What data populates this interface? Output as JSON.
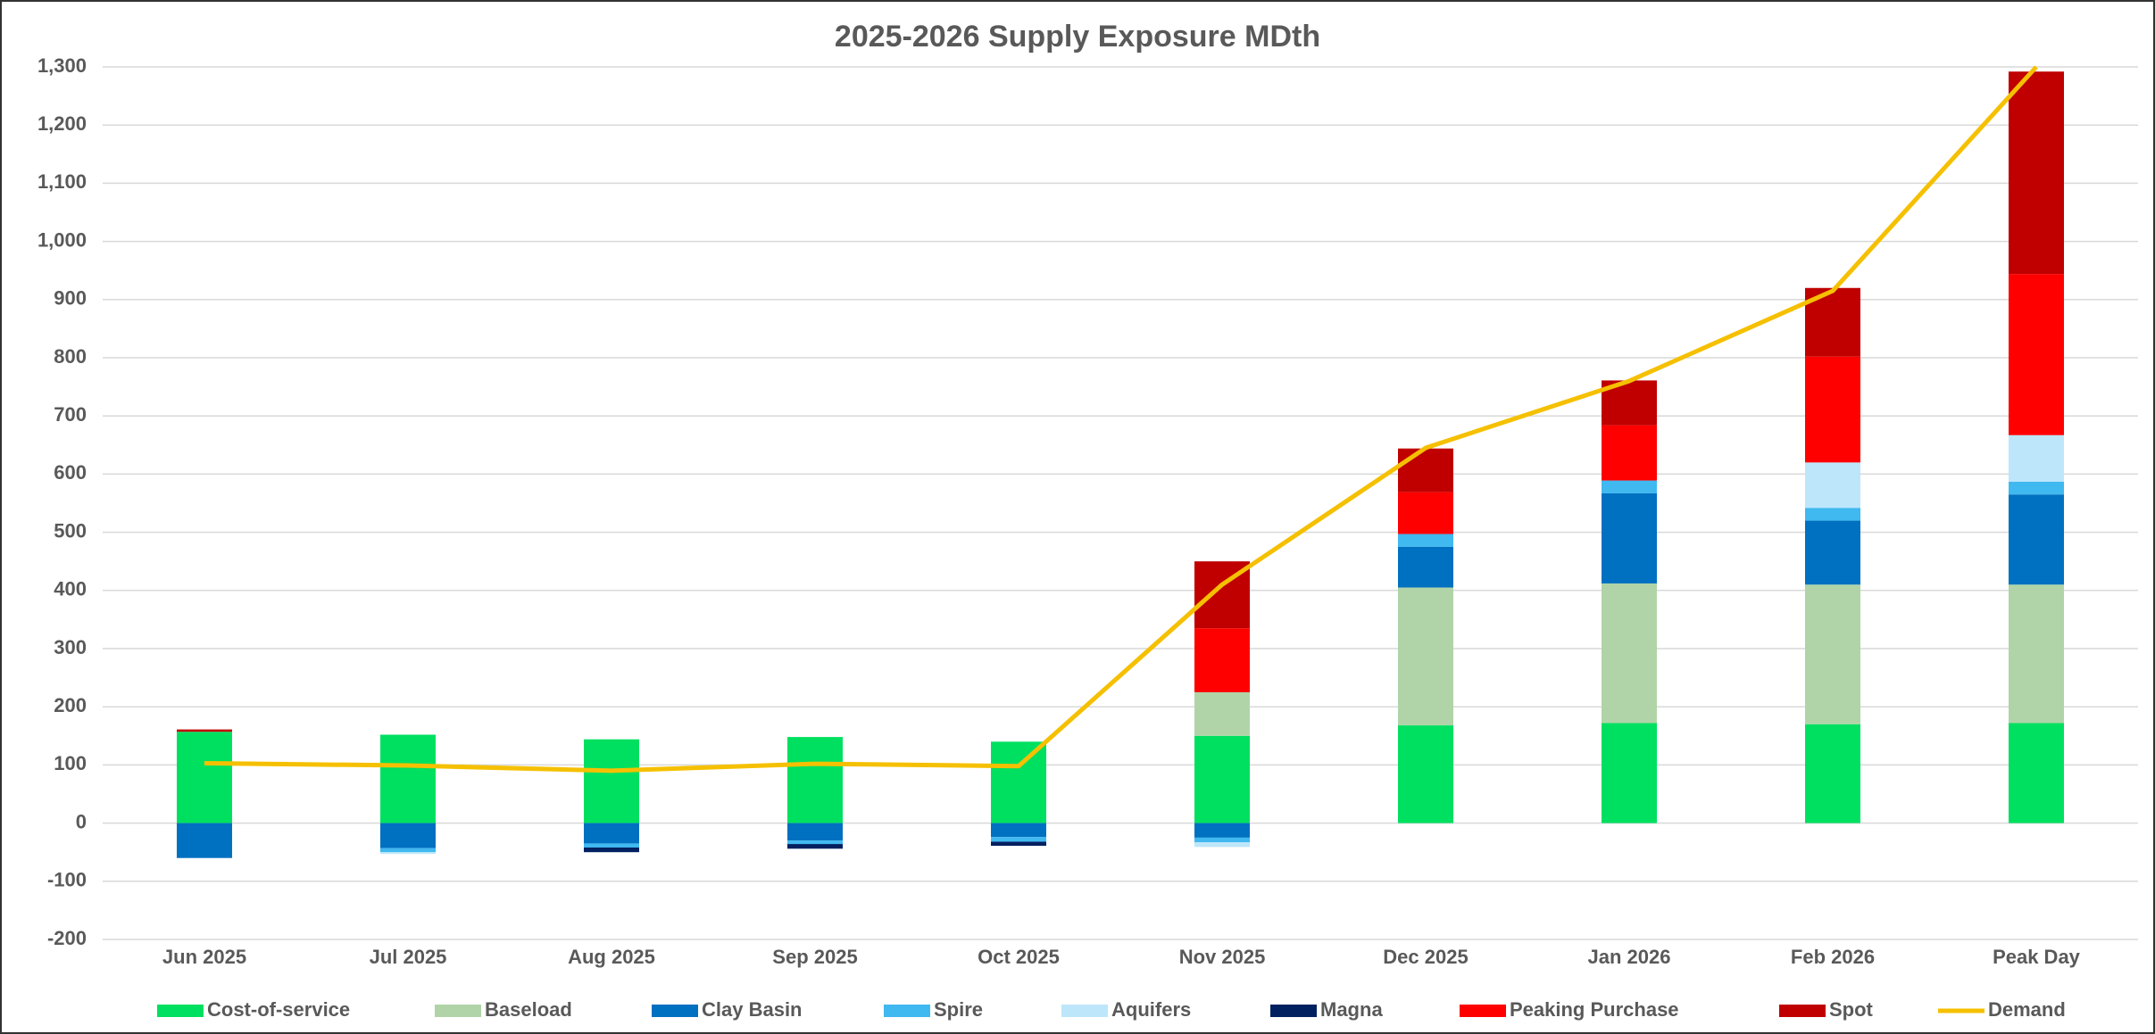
{
  "chart_data": {
    "type": "stacked-bar-line",
    "title": "2025-2026 Supply Exposure MDth",
    "categories": [
      "Jun 2025",
      "Jul 2025",
      "Aug 2025",
      "Sep 2025",
      "Oct 2025",
      "Nov 2025",
      "Dec 2025",
      "Jan 2026",
      "Feb 2026",
      "Peak Day"
    ],
    "series": [
      {
        "name": "Cost-of-service",
        "color": "#00e060",
        "type": "bar",
        "values": [
          157,
          152,
          144,
          148,
          140,
          150,
          168,
          172,
          170,
          172
        ]
      },
      {
        "name": "Baseload",
        "color": "#b0d4a8",
        "type": "bar",
        "values": [
          null,
          null,
          null,
          null,
          null,
          75,
          237,
          240,
          240,
          238
        ]
      },
      {
        "name": "Clay Basin",
        "color": "#0070c0",
        "type": "bar",
        "values": [
          -60,
          -43,
          -35,
          -30,
          -24,
          -25,
          70,
          155,
          110,
          155
        ]
      },
      {
        "name": "Spire",
        "color": "#40b8f0",
        "type": "bar",
        "values": [
          null,
          -7,
          -7,
          -6,
          -8,
          -8,
          22,
          22,
          22,
          22
        ]
      },
      {
        "name": "Aquifers",
        "color": "#bde6fa",
        "type": "bar",
        "values": [
          null,
          -3,
          null,
          null,
          null,
          -8,
          null,
          null,
          78,
          80
        ]
      },
      {
        "name": "Magna",
        "color": "#002060",
        "type": "bar",
        "values": [
          null,
          null,
          -8,
          -8,
          -7,
          null,
          null,
          null,
          null,
          null
        ]
      },
      {
        "name": "Peaking Purchase",
        "color": "#ff0000",
        "type": "bar",
        "values": [
          null,
          null,
          null,
          null,
          null,
          110,
          72,
          95,
          182,
          277
        ]
      },
      {
        "name": "Spot",
        "color": "#c00000",
        "type": "bar",
        "values": [
          4,
          null,
          null,
          null,
          null,
          115,
          75,
          77,
          118,
          348
        ]
      },
      {
        "name": "Demand",
        "color": "#f5c000",
        "type": "line",
        "values": [
          103,
          99,
          90,
          102,
          98,
          410,
          645,
          760,
          915,
          1300
        ]
      }
    ],
    "ylim": [
      -200,
      1300
    ],
    "yticks": [
      {
        "value": -200,
        "label": "-200"
      },
      {
        "value": -100,
        "label": "-100"
      },
      {
        "value": 0,
        "label": "0"
      },
      100,
      200,
      300,
      400,
      500,
      600,
      700,
      800,
      900,
      {
        "value": 1000,
        "label": "1,000"
      },
      {
        "value": 1100,
        "label": "1,100"
      },
      {
        "value": 1200,
        "label": "1,200"
      },
      {
        "value": 1300,
        "label": "1,300"
      }
    ],
    "grid": true,
    "legend": "bottom"
  }
}
